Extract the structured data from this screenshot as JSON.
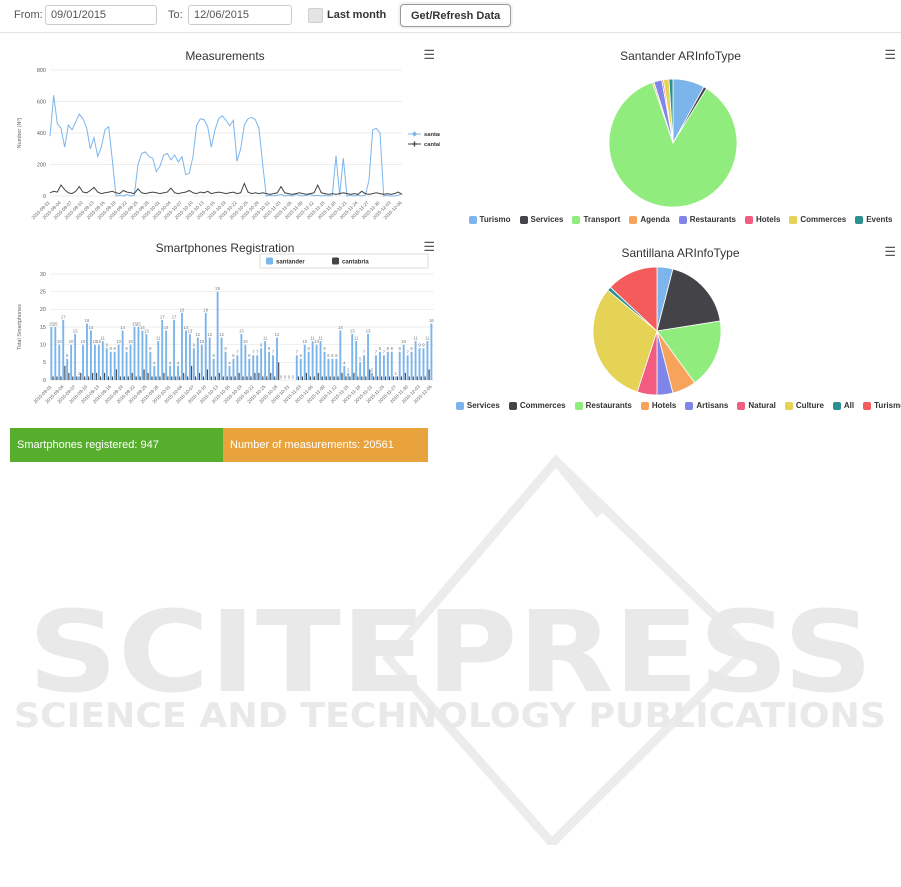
{
  "toolbar": {
    "from_label": "From:",
    "from_value": "09/01/2015",
    "to_label": "To:",
    "to_value": "12/06/2015",
    "last_month_label": "Last month",
    "refresh_button_label": "Get/Refresh Data"
  },
  "summary": {
    "smartphones_registered": "Smartphones registered: 947",
    "measurements_count": "Number of measurements: 20561",
    "green_color": "#56ae2c",
    "orange_color": "#e9a33c"
  },
  "watermark": {
    "title": "SCITEPRESS",
    "subtitle": "SCIENCE AND TECHNOLOGY PUBLICATIONS"
  },
  "chart_data": [
    {
      "type": "line",
      "title": "Measurements",
      "ylabel": "Number (Nº)",
      "ylim": [
        0,
        800
      ],
      "yticks": [
        0,
        200,
        400,
        600,
        800
      ],
      "grid": true,
      "legend_position": "right",
      "x_tick_labels": [
        "2015-09-01",
        "2015-09-04",
        "2015-09-07",
        "2015-09-10",
        "2015-09-13",
        "2015-09-16",
        "2015-09-19",
        "2015-09-22",
        "2015-09-25",
        "2015-09-28",
        "2015-10-01",
        "2015-10-04",
        "2015-10-07",
        "2015-10-10",
        "2015-10-13",
        "2015-10-16",
        "2015-10-19",
        "2015-10-22",
        "2015-10-25",
        "2015-10-28",
        "2015-10-31",
        "2015-11-03",
        "2015-11-06",
        "2015-11-09",
        "2015-11-12",
        "2015-11-15",
        "2015-11-18",
        "2015-11-21",
        "2015-11-24",
        "2015-11-27",
        "2015-11-30",
        "2015-12-03",
        "2015-12-06"
      ],
      "series": [
        {
          "name": "santander",
          "color": "#7cb5ec",
          "marker": "diamond",
          "values": [
            380,
            640,
            460,
            430,
            310,
            450,
            420,
            470,
            520,
            490,
            430,
            300,
            370,
            250,
            310,
            420,
            440,
            230,
            0,
            5,
            0,
            10,
            0,
            5,
            200,
            270,
            280,
            250,
            240,
            155,
            190,
            260,
            270,
            230,
            260,
            215,
            250,
            135,
            145,
            250,
            450,
            490,
            485,
            440,
            310,
            420,
            490,
            510,
            480,
            445,
            480,
            220,
            300,
            450,
            490,
            500,
            485,
            430,
            200,
            0,
            5,
            0,
            5,
            10,
            0,
            5,
            0,
            10,
            5,
            0,
            5,
            10,
            0,
            5,
            0,
            5,
            0,
            5,
            255,
            5,
            240,
            0,
            5,
            0,
            5,
            0,
            5,
            100,
            420,
            430,
            400,
            0,
            5,
            0,
            0,
            5,
            15
          ]
        },
        {
          "name": "cantabria",
          "color": "#434348",
          "marker": "plus",
          "values": [
            20,
            30,
            25,
            70,
            40,
            20,
            15,
            30,
            60,
            25,
            20,
            35,
            55,
            25,
            15,
            20,
            25,
            30,
            20,
            15,
            35,
            25,
            20,
            15,
            45,
            20,
            15,
            20,
            25,
            20,
            15,
            20,
            25,
            50,
            20,
            15,
            20,
            25,
            35,
            20,
            15,
            25,
            20,
            30,
            15,
            20,
            25,
            20,
            15,
            20,
            25,
            15,
            20,
            80,
            25,
            15,
            20,
            15,
            20,
            15,
            10,
            15,
            20,
            60,
            20,
            15,
            10,
            15,
            20,
            15,
            10,
            15,
            20,
            70,
            20,
            15,
            10,
            15,
            10,
            15,
            20,
            15,
            10,
            15,
            10,
            30,
            15,
            10,
            15,
            20,
            15,
            10,
            15,
            10,
            15,
            25,
            10
          ]
        }
      ]
    },
    {
      "type": "bar",
      "title": "Smartphones Registration",
      "ylabel": "Total Smartphones",
      "ylim": [
        0,
        30
      ],
      "yticks": [
        0,
        5,
        10,
        15,
        20,
        25,
        30
      ],
      "grid": true,
      "legend_position": "top-right",
      "x_tick_labels": [
        "2015-09-01",
        "2015-09-04",
        "2015-09-07",
        "2015-09-10",
        "2015-09-13",
        "2015-09-16",
        "2015-09-19",
        "2015-09-22",
        "2015-09-25",
        "2015-09-28",
        "2015-10-01",
        "2015-10-04",
        "2015-10-07",
        "2015-10-10",
        "2015-10-13",
        "2015-10-16",
        "2015-10-19",
        "2015-10-22",
        "2015-10-25",
        "2015-10-28",
        "2015-10-31",
        "2015-11-03",
        "2015-11-06",
        "2015-11-09",
        "2015-11-12",
        "2015-11-15",
        "2015-11-18",
        "2015-11-21",
        "2015-11-24",
        "2015-11-27",
        "2015-11-30",
        "2015-12-03",
        "2015-12-06"
      ],
      "series": [
        {
          "name": "santander",
          "color": "#7cb5ec",
          "values": [
            15,
            15,
            10,
            17,
            6,
            10,
            13,
            1,
            10,
            16,
            14,
            10,
            10,
            11,
            9,
            8,
            8,
            10,
            14,
            8,
            10,
            15,
            15,
            14,
            13,
            8,
            4,
            11,
            17,
            14,
            4,
            17,
            4,
            19,
            14,
            13,
            9,
            12,
            10,
            19,
            12,
            6,
            25,
            12,
            8,
            4,
            6,
            7,
            13,
            10,
            6,
            7,
            7,
            9,
            11,
            8,
            7,
            12,
            0,
            0,
            0,
            0,
            7,
            6,
            10,
            8,
            11,
            10,
            11,
            8,
            6,
            6,
            6,
            14,
            4,
            2,
            13,
            11,
            5,
            7,
            13,
            2,
            7,
            8,
            7,
            8,
            8,
            1,
            8,
            10,
            7,
            8,
            11,
            9,
            9,
            11,
            16
          ]
        },
        {
          "name": "cantabria",
          "color": "#434348",
          "values": [
            1,
            1,
            1,
            4,
            2,
            1,
            1,
            2,
            1,
            1,
            2,
            2,
            1,
            2,
            1,
            1,
            3,
            1,
            1,
            1,
            2,
            1,
            1,
            3,
            2,
            1,
            1,
            1,
            2,
            1,
            1,
            1,
            1,
            2,
            1,
            4,
            1,
            2,
            1,
            3,
            1,
            1,
            2,
            1,
            1,
            1,
            1,
            2,
            1,
            1,
            1,
            2,
            2,
            1,
            1,
            2,
            1,
            5,
            0,
            0,
            0,
            0,
            1,
            1,
            2,
            1,
            1,
            2,
            1,
            1,
            1,
            1,
            1,
            2,
            1,
            1,
            2,
            1,
            1,
            1,
            3,
            1,
            1,
            1,
            1,
            1,
            1,
            1,
            1,
            2,
            1,
            1,
            1,
            1,
            1,
            3,
            0
          ]
        }
      ]
    },
    {
      "type": "pie",
      "title": "Santander ARInfoType",
      "slices": [
        {
          "label": "Turismo",
          "value": 8,
          "color": "#7cb5ec"
        },
        {
          "label": "Services",
          "value": 0.8,
          "color": "#434348"
        },
        {
          "label": "Transport",
          "value": 86,
          "color": "#90ed7d"
        },
        {
          "label": "Agenda",
          "value": 0.4,
          "color": "#f7a35c"
        },
        {
          "label": "Restaurants",
          "value": 2,
          "color": "#8085e9"
        },
        {
          "label": "Hotels",
          "value": 0.4,
          "color": "#f15c80"
        },
        {
          "label": "Commerces",
          "value": 1.4,
          "color": "#e4d354"
        },
        {
          "label": "Events",
          "value": 1,
          "color": "#2b908f"
        }
      ]
    },
    {
      "type": "pie",
      "title": "Santillana ARInfoType",
      "slices": [
        {
          "label": "Services",
          "value": 4,
          "color": "#7cb5ec"
        },
        {
          "label": "Commerces",
          "value": 18.5,
          "color": "#434348"
        },
        {
          "label": "Restaurants",
          "value": 17.5,
          "color": "#90ed7d"
        },
        {
          "label": "Hotels",
          "value": 6,
          "color": "#f7a35c"
        },
        {
          "label": "Artisans",
          "value": 4,
          "color": "#8085e9"
        },
        {
          "label": "Natural",
          "value": 5,
          "color": "#f15c80"
        },
        {
          "label": "Culture",
          "value": 31,
          "color": "#e4d354"
        },
        {
          "label": "All",
          "value": 1,
          "color": "#2b908f"
        },
        {
          "label": "Turismo",
          "value": 13,
          "color": "#f45b5b"
        }
      ]
    }
  ]
}
